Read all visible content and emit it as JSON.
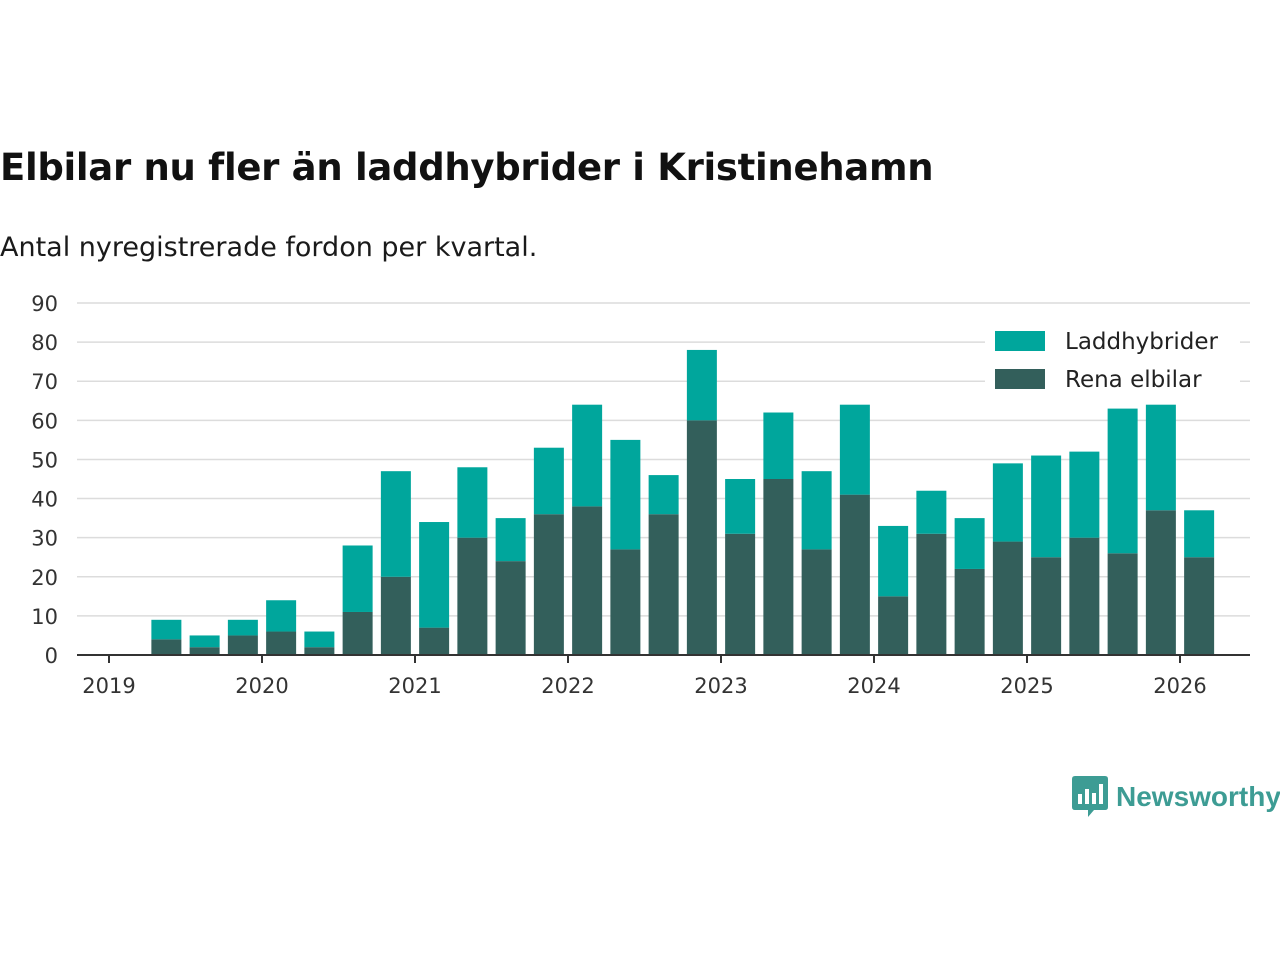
{
  "title": "Elbilar nu fler än laddhybrider i Kristinehamn",
  "subtitle": "Antal nyregistrerade fordon per kvartal.",
  "logo": {
    "text": "Newsworthy",
    "color": "#3d9c94"
  },
  "chart_data": {
    "type": "bar",
    "stacked": true,
    "title": "Elbilar nu fler än laddhybrider i Kristinehamn",
    "subtitle": "Antal nyregistrerade fordon per kvartal.",
    "xlabel": "",
    "ylabel": "",
    "ylim": [
      0,
      90
    ],
    "yticks": [
      0,
      10,
      20,
      30,
      40,
      50,
      60,
      70,
      80,
      90
    ],
    "xticks": [
      "2019",
      "2020",
      "2021",
      "2022",
      "2023",
      "2024",
      "2025",
      "2026"
    ],
    "grid": true,
    "legend_position": "top-right",
    "categories": [
      "2019 Q2",
      "2019 Q3",
      "2019 Q4",
      "2020 Q1",
      "2020 Q2",
      "2020 Q3",
      "2020 Q4",
      "2021 Q1",
      "2021 Q2",
      "2021 Q3",
      "2021 Q4",
      "2022 Q1",
      "2022 Q2",
      "2022 Q3",
      "2022 Q4",
      "2023 Q1",
      "2023 Q2",
      "2023 Q3",
      "2023 Q4",
      "2024 Q1",
      "2024 Q2",
      "2024 Q3",
      "2024 Q4",
      "2025 Q1",
      "2025 Q2",
      "2025 Q3",
      "2025 Q4",
      "2026 Q1"
    ],
    "series": [
      {
        "name": "Rena elbilar",
        "color": "#335f5b",
        "values": [
          4,
          2,
          5,
          6,
          2,
          11,
          20,
          7,
          30,
          24,
          36,
          38,
          27,
          36,
          60,
          31,
          45,
          27,
          41,
          15,
          31,
          22,
          29,
          25,
          30,
          26,
          37,
          25
        ]
      },
      {
        "name": "Laddhybrider",
        "color": "#00a69c",
        "values": [
          5,
          3,
          4,
          8,
          4,
          17,
          27,
          27,
          18,
          11,
          17,
          26,
          28,
          10,
          18,
          14,
          17,
          20,
          23,
          18,
          11,
          13,
          20,
          26,
          22,
          37,
          27,
          12
        ]
      }
    ],
    "legend": [
      "Laddhybrider",
      "Rena elbilar"
    ]
  }
}
